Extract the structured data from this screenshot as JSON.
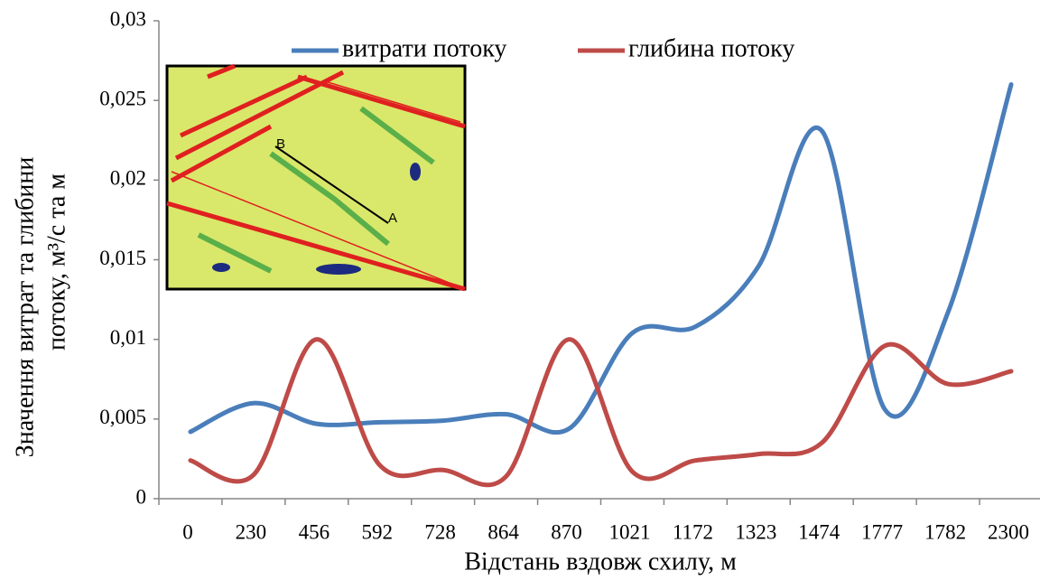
{
  "chart_data": {
    "type": "line",
    "y_axis_label": [
      "Значення витрат  та глибини",
      "потоку, м³/с та м"
    ],
    "x_axis_label": "Відстань  вздовж схилу, м",
    "categories": [
      "0",
      "230",
      "456",
      "592",
      "728",
      "864",
      "870",
      "1021",
      "1172",
      "1323",
      "1474",
      "1777",
      "1782",
      "2300"
    ],
    "series": [
      {
        "name": "витрати потоку",
        "color": "#4a7ebb",
        "values": [
          0.0042,
          0.006,
          0.0047,
          0.0048,
          0.0049,
          0.0053,
          0.0044,
          0.0104,
          0.0108,
          0.0146,
          0.0231,
          0.0056,
          0.0117,
          0.026
        ]
      },
      {
        "name": "глибина потоку",
        "color": "#be4b48",
        "values": [
          0.0024,
          0.0015,
          0.01,
          0.0021,
          0.0018,
          0.0014,
          0.01,
          0.0017,
          0.0024,
          0.0028,
          0.0035,
          0.0096,
          0.0072,
          0.008
        ]
      }
    ],
    "ylim": [
      0,
      0.03
    ],
    "yticks": [
      0,
      {
        "value": 0.005,
        "label": "0,005"
      },
      {
        "value": 0.01,
        "label": "0,01"
      },
      {
        "value": 0.015,
        "label": "0,015"
      },
      {
        "value": 0.02,
        "label": "0,02"
      },
      {
        "value": 0.025,
        "label": "0,025"
      },
      {
        "value": 0.03,
        "label": "0,03"
      }
    ],
    "smooth": true,
    "legend": "top",
    "inset_labels": [
      "B",
      "A"
    ]
  }
}
